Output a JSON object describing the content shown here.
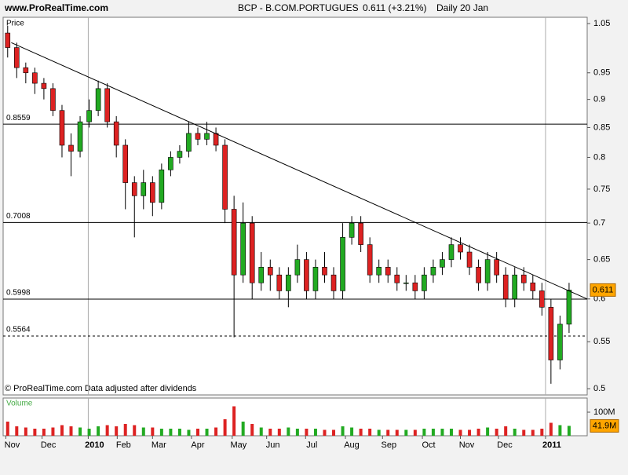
{
  "chart_data": {
    "type": "candlestick",
    "site": "www.ProRealTime.com",
    "title": "BCP - B.COM.PORTUGUES",
    "last_change": "0.611 (+3.21%)",
    "period": "Daily 20 Jan",
    "y_label": "Price",
    "note": "© ProRealTime.com Data adjusted after dividends",
    "log_scale": true,
    "up_color": "#22aa22",
    "down_color": "#dd2222",
    "x": [
      0,
      1,
      2,
      3,
      4,
      5,
      6,
      7,
      8,
      9,
      10,
      11,
      12,
      13,
      14,
      15,
      16,
      17,
      18,
      19,
      20,
      21,
      22,
      23,
      24,
      25,
      26,
      27,
      28,
      29,
      30,
      31,
      32,
      33,
      34,
      35,
      36,
      37,
      38,
      39,
      40,
      41,
      42,
      43,
      44,
      45,
      46,
      47,
      48,
      49,
      50,
      51,
      52,
      53,
      54,
      55,
      56,
      57,
      58,
      59,
      60,
      61,
      62
    ],
    "open": [
      1.03,
      1.0,
      0.96,
      0.95,
      0.93,
      0.92,
      0.88,
      0.82,
      0.81,
      0.86,
      0.88,
      0.92,
      0.86,
      0.82,
      0.76,
      0.74,
      0.76,
      0.73,
      0.78,
      0.8,
      0.81,
      0.84,
      0.83,
      0.84,
      0.82,
      0.72,
      0.63,
      0.7,
      0.62,
      0.64,
      0.63,
      0.61,
      0.63,
      0.65,
      0.61,
      0.64,
      0.63,
      0.61,
      0.68,
      0.7,
      0.67,
      0.63,
      0.64,
      0.63,
      0.62,
      0.62,
      0.61,
      0.63,
      0.64,
      0.65,
      0.67,
      0.66,
      0.64,
      0.62,
      0.65,
      0.63,
      0.6,
      0.63,
      0.62,
      0.61,
      0.59,
      0.53,
      0.57
    ],
    "high": [
      1.045,
      1.01,
      0.97,
      0.96,
      0.94,
      0.93,
      0.89,
      0.84,
      0.87,
      0.9,
      0.935,
      0.93,
      0.87,
      0.83,
      0.77,
      0.78,
      0.77,
      0.79,
      0.81,
      0.82,
      0.86,
      0.85,
      0.86,
      0.85,
      0.83,
      0.74,
      0.73,
      0.71,
      0.66,
      0.65,
      0.64,
      0.64,
      0.67,
      0.66,
      0.65,
      0.66,
      0.64,
      0.7,
      0.71,
      0.71,
      0.68,
      0.65,
      0.65,
      0.64,
      0.63,
      0.63,
      0.64,
      0.65,
      0.66,
      0.68,
      0.68,
      0.67,
      0.65,
      0.66,
      0.66,
      0.64,
      0.64,
      0.64,
      0.63,
      0.62,
      0.6,
      0.58,
      0.62
    ],
    "low": [
      0.98,
      0.94,
      0.93,
      0.91,
      0.9,
      0.87,
      0.8,
      0.77,
      0.8,
      0.85,
      0.87,
      0.85,
      0.8,
      0.72,
      0.68,
      0.72,
      0.71,
      0.72,
      0.77,
      0.79,
      0.8,
      0.82,
      0.82,
      0.81,
      0.7,
      0.555,
      0.62,
      0.6,
      0.61,
      0.61,
      0.6,
      0.59,
      0.62,
      0.6,
      0.6,
      0.62,
      0.6,
      0.6,
      0.67,
      0.66,
      0.62,
      0.62,
      0.62,
      0.61,
      0.61,
      0.6,
      0.6,
      0.62,
      0.63,
      0.64,
      0.65,
      0.63,
      0.61,
      0.61,
      0.62,
      0.59,
      0.59,
      0.61,
      0.6,
      0.58,
      0.505,
      0.52,
      0.56
    ],
    "close": [
      1.0,
      0.96,
      0.95,
      0.93,
      0.92,
      0.88,
      0.82,
      0.81,
      0.86,
      0.88,
      0.92,
      0.86,
      0.82,
      0.76,
      0.74,
      0.76,
      0.73,
      0.78,
      0.8,
      0.81,
      0.84,
      0.83,
      0.84,
      0.82,
      0.72,
      0.63,
      0.7,
      0.62,
      0.64,
      0.63,
      0.61,
      0.63,
      0.65,
      0.61,
      0.64,
      0.63,
      0.61,
      0.68,
      0.7,
      0.67,
      0.63,
      0.64,
      0.63,
      0.62,
      0.62,
      0.61,
      0.63,
      0.64,
      0.65,
      0.67,
      0.66,
      0.64,
      0.62,
      0.65,
      0.63,
      0.6,
      0.63,
      0.62,
      0.61,
      0.59,
      0.53,
      0.57,
      0.611
    ],
    "xlim": [
      -0.5,
      64
    ],
    "xticks": [
      {
        "value": -0.2,
        "label": "Nov"
      },
      {
        "value": 3.8,
        "label": "Dec"
      },
      {
        "value": 8.9,
        "label": "2010"
      },
      {
        "value": 12.1,
        "label": "Feb"
      },
      {
        "value": 16,
        "label": "Mar"
      },
      {
        "value": 20.3,
        "label": "Apr"
      },
      {
        "value": 24.8,
        "label": "May"
      },
      {
        "value": 28.6,
        "label": "Jun"
      },
      {
        "value": 32.9,
        "label": "Jul"
      },
      {
        "value": 37.3,
        "label": "Aug"
      },
      {
        "value": 41.4,
        "label": "Sep"
      },
      {
        "value": 45.8,
        "label": "Oct"
      },
      {
        "value": 50,
        "label": "Nov"
      },
      {
        "value": 54.2,
        "label": "Dec"
      },
      {
        "value": 59.4,
        "label": "2011"
      }
    ],
    "ylim": [
      0.4937,
      1.0635
    ],
    "yticks": [
      1.05,
      0.95,
      0.9,
      0.85,
      0.8,
      0.75,
      0.7,
      0.65,
      0.6,
      0.55,
      0.5
    ],
    "levels": [
      0.8559,
      0.7008,
      0.5998,
      0.5564
    ],
    "level_dashed": [
      false,
      false,
      false,
      true
    ],
    "trendline": {
      "x": [
        0.4,
        64
      ],
      "y": [
        1.01,
        0.6
      ]
    },
    "last_price": 0.611,
    "volume_label": "Volume",
    "volume": [
      60,
      40,
      35,
      30,
      30,
      35,
      45,
      40,
      35,
      30,
      40,
      45,
      40,
      50,
      45,
      35,
      35,
      30,
      30,
      30,
      25,
      30,
      30,
      35,
      70,
      125,
      60,
      50,
      35,
      30,
      30,
      35,
      30,
      30,
      30,
      25,
      25,
      40,
      35,
      30,
      30,
      25,
      25,
      25,
      25,
      25,
      30,
      30,
      30,
      30,
      25,
      25,
      30,
      35,
      30,
      40,
      30,
      25,
      25,
      30,
      55,
      45,
      41.9
    ],
    "vol_ylim": [
      0,
      160
    ],
    "vol_yticks": [
      {
        "value": 100,
        "label": "100M"
      }
    ],
    "last_volume": {
      "value": 41.9,
      "label": "41.9M"
    }
  }
}
